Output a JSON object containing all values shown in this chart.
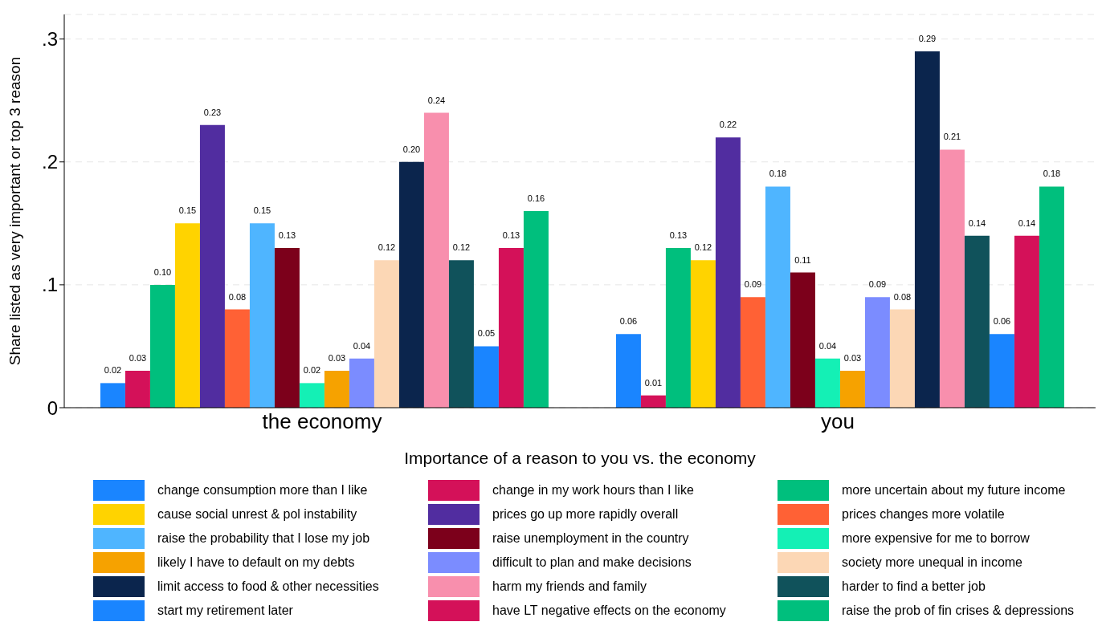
{
  "chart_data": {
    "type": "bar",
    "xlabel": "Importance of a reason to you vs. the economy",
    "ylabel": "Share listed as very important or top 3 reason",
    "categories": [
      "the economy",
      "you"
    ],
    "ylim": [
      0,
      0.32
    ],
    "yticks": [
      0,
      {
        "value": 0.1,
        "label": ".1"
      },
      {
        "value": 0.2,
        "label": ".2"
      },
      {
        "value": 0.3,
        "label": ".3"
      }
    ],
    "grid": "y",
    "legend": "bottom",
    "series": [
      {
        "name": "change consumption more than I like",
        "color": "#1a85ff",
        "values": [
          0.02,
          0.06
        ],
        "value_labels": [
          "0.02",
          "0.06"
        ]
      },
      {
        "name": "change in my work hours than I like",
        "color": "#d41159",
        "values": [
          0.03,
          0.01
        ],
        "value_labels": [
          "0.03",
          "0.01"
        ]
      },
      {
        "name": "more uncertain about my future income",
        "color": "#00bf7d",
        "values": [
          0.1,
          0.13
        ],
        "value_labels": [
          "0.10",
          "0.13"
        ]
      },
      {
        "name": "cause social unrest & pol instability",
        "color": "#ffd300",
        "values": [
          0.15,
          0.12
        ],
        "value_labels": [
          "0.15",
          "0.12"
        ]
      },
      {
        "name": "prices go up more rapidly overall",
        "color": "#512da0",
        "values": [
          0.23,
          0.22
        ],
        "value_labels": [
          "0.23",
          "0.22"
        ]
      },
      {
        "name": "prices changes more volatile",
        "color": "#ff6135",
        "values": [
          0.08,
          0.09
        ],
        "value_labels": [
          "0.08",
          "0.09"
        ]
      },
      {
        "name": "raise the probability that I lose my job",
        "color": "#4fb5ff",
        "values": [
          0.15,
          0.18
        ],
        "value_labels": [
          "0.15",
          "0.18"
        ]
      },
      {
        "name": "raise unemployment in the country",
        "color": "#7c001b",
        "values": [
          0.13,
          0.11
        ],
        "value_labels": [
          "0.13",
          "0.11"
        ]
      },
      {
        "name": "more expensive for me to borrow",
        "color": "#14f0b5",
        "values": [
          0.02,
          0.04
        ],
        "value_labels": [
          "0.02",
          "0.04"
        ]
      },
      {
        "name": "likely I have to default on my debts",
        "color": "#f6a200",
        "values": [
          0.03,
          0.03
        ],
        "value_labels": [
          "0.03",
          "0.03"
        ]
      },
      {
        "name": "difficult to plan and make decisions",
        "color": "#7b8cff",
        "values": [
          0.04,
          0.09
        ],
        "value_labels": [
          "0.04",
          "0.09"
        ]
      },
      {
        "name": "society more unequal in income",
        "color": "#fcd7b5",
        "values": [
          0.12,
          0.08
        ],
        "value_labels": [
          "0.12",
          "0.08"
        ]
      },
      {
        "name": "limit access to food & other necessities",
        "color": "#0b254d",
        "values": [
          0.2,
          0.29
        ],
        "value_labels": [
          "0.20",
          "0.29"
        ]
      },
      {
        "name": "harm my friends and family",
        "color": "#f88fad",
        "values": [
          0.24,
          0.21
        ],
        "value_labels": [
          "0.24",
          "0.21"
        ]
      },
      {
        "name": "harder to find a better job",
        "color": "#10525b",
        "values": [
          0.12,
          0.14
        ],
        "value_labels": [
          "0.12",
          "0.14"
        ]
      },
      {
        "name": "start my retirement later",
        "color": "#1a85ff",
        "values": [
          0.05,
          0.06
        ],
        "value_labels": [
          "0.05",
          "0.06"
        ]
      },
      {
        "name": "have LT negative effects on the economy",
        "color": "#d41159",
        "values": [
          0.13,
          0.14
        ],
        "value_labels": [
          "0.13",
          "0.14"
        ]
      },
      {
        "name": "raise the prob of fin crises & depressions",
        "color": "#00bf7d",
        "values": [
          0.16,
          0.18
        ],
        "value_labels": [
          "0.16",
          "0.18"
        ]
      }
    ]
  }
}
